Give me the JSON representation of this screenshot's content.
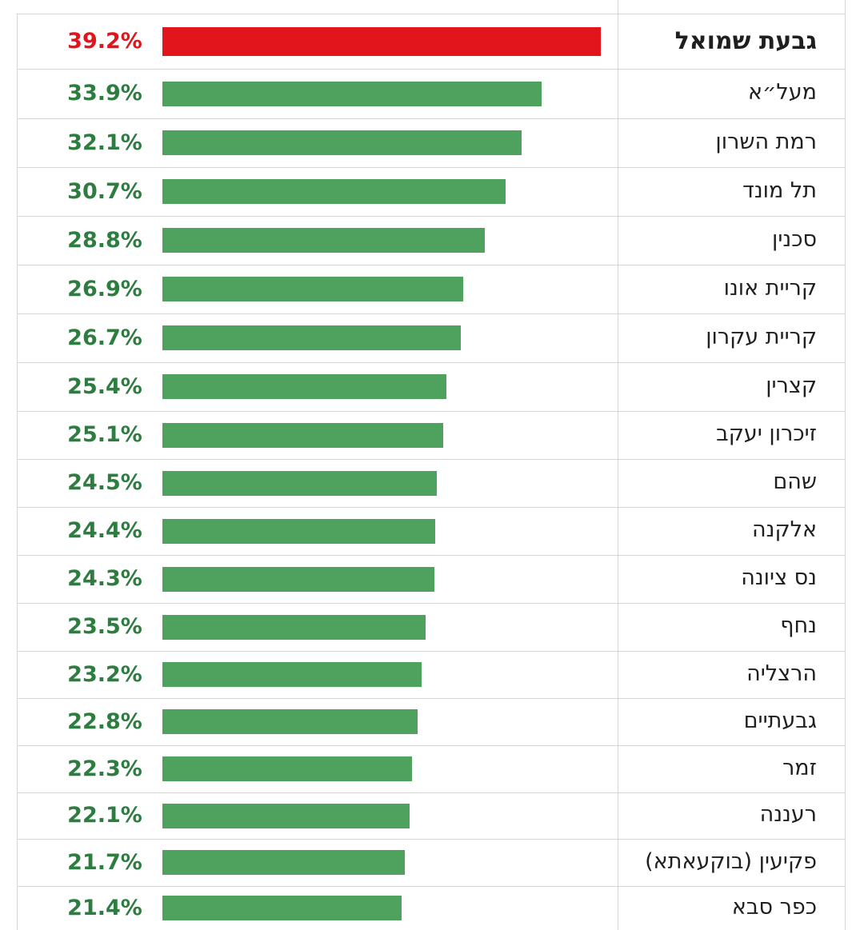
{
  "chart_data": {
    "type": "bar",
    "orientation": "horizontal",
    "categories": [
      "גבעת שמואל",
      "מעל״א",
      "רמת השרון",
      "תל מונד",
      "סכנין",
      "קריית אונו",
      "קריית עקרון",
      "קצרין",
      "זיכרון יעקב",
      "שהם",
      "אלקנה",
      "נס ציונה",
      "נחף",
      "הרצליה",
      "גבעתיים",
      "זמר",
      "רעננה",
      "פקיעין (בוקעאתא)",
      "כפר סבא"
    ],
    "values": [
      39.2,
      33.9,
      32.1,
      30.7,
      28.8,
      26.9,
      26.7,
      25.4,
      25.1,
      24.5,
      24.4,
      24.3,
      23.5,
      23.2,
      22.8,
      22.3,
      22.1,
      21.7,
      21.4
    ],
    "value_labels": [
      "39.2%",
      "33.9%",
      "32.1%",
      "30.7%",
      "28.8%",
      "26.9%",
      "26.7%",
      "25.4%",
      "25.1%",
      "24.5%",
      "24.4%",
      "24.3%",
      "23.5%",
      "23.2%",
      "22.8%",
      "22.3%",
      "22.1%",
      "21.7%",
      "21.4%"
    ],
    "highlight_index": 0,
    "grid": true,
    "colors": {
      "highlight": "#e2151d",
      "bar": "#4ea25d",
      "value_text_highlight": "#e2151d",
      "value_text": "#2e7d40",
      "grid": "#d6d6d6",
      "label": "#1f1f1f"
    }
  }
}
